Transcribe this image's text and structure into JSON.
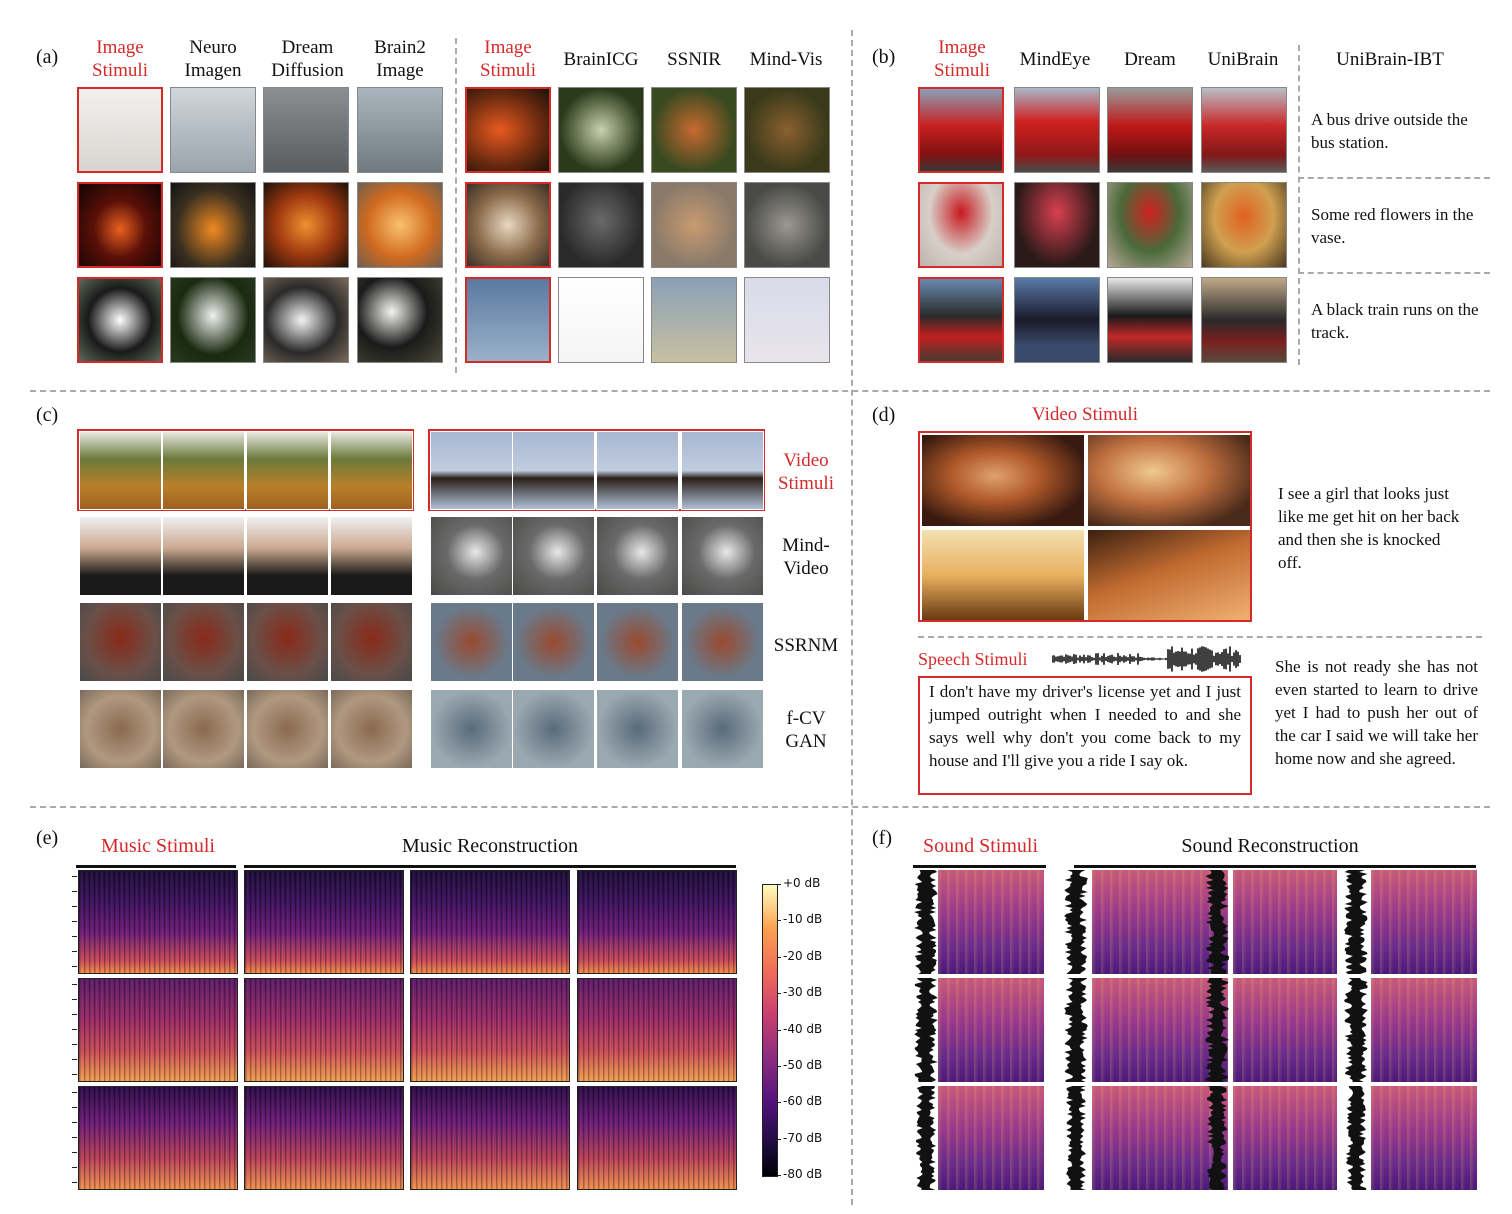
{
  "panel_a": {
    "letter": "(a)",
    "left_headers": [
      "Image\nStimuli",
      "Neuro\nImagen",
      "Dream\nDiffusion",
      "Brain2\nImage"
    ],
    "right_headers": [
      "Image\nStimuli",
      "BrainICG",
      "SSNIR",
      "Mind-Vis"
    ]
  },
  "panel_b": {
    "letter": "(b)",
    "headers": [
      "Image\nStimuli",
      "MindEye",
      "Dream",
      "UniBrain"
    ],
    "text_header": "UniBrain-IBT",
    "captions": [
      "A bus drive outside the bus station.",
      "Some red flowers in the vase.",
      "A black train runs on the track."
    ]
  },
  "panel_c": {
    "letter": "(c)",
    "row_labels": [
      "Video\nStimuli",
      "Mind-\nVideo",
      "SSRNM",
      "f-CV\nGAN"
    ]
  },
  "panel_d": {
    "letter": "(d)",
    "video_label": "Video Stimuli",
    "video_caption": "I see a girl that looks just like me get hit on her back and then she is knocked off.",
    "speech_label": "Speech Stimuli",
    "speech_text": "I don't have my driver's license yet and I just jumped outright when I needed to and she says well why don't you come back to my house and I'll give you a ride I say ok.",
    "speech_caption": "She is not ready she has not even started to learn to drive yet I had to push her out of the car I said we will take her home now and she agreed."
  },
  "panel_e": {
    "letter": "(e)",
    "stim_label": "Music Stimuli",
    "recon_label": "Music Reconstruction",
    "colorbar_ticks": [
      "+0 dB",
      "-10 dB",
      "-20 dB",
      "-30 dB",
      "-40 dB",
      "-50 dB",
      "-60 dB",
      "-70 dB",
      "-80 dB"
    ]
  },
  "panel_f": {
    "letter": "(f)",
    "stim_label": "Sound Stimuli",
    "recon_label": "Sound Reconstruction"
  },
  "colors": {
    "accent_red": "#d42a2a",
    "dash": "#aaaaaa",
    "spec_dark": "#1a0b3a",
    "spec_mid": "#7a2a80",
    "spec_hot": "#f08a4a"
  }
}
